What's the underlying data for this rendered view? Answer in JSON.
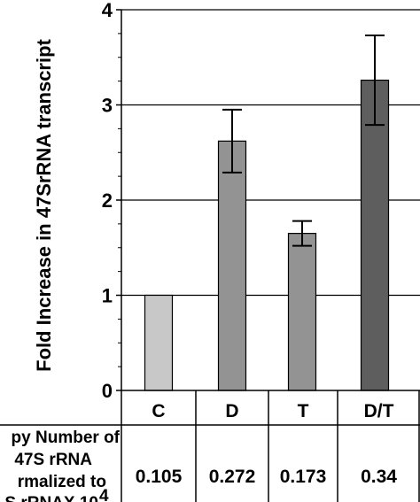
{
  "chart_data": {
    "type": "bar",
    "ylabel": "Fold  Increase in 47SrRNA transcript",
    "ylim": [
      0,
      4
    ],
    "yticks": [
      0,
      1,
      2,
      3,
      4
    ],
    "grid": "horizontal",
    "categories": [
      "C",
      "D",
      "T",
      "D/T"
    ],
    "values": [
      1.0,
      2.62,
      1.65,
      3.26
    ],
    "error": [
      0,
      0.33,
      0.13,
      0.47
    ],
    "colors": [
      "#c8c8c8",
      "#939393",
      "#939393",
      "#5e5e5e"
    ],
    "table": {
      "row_label": [
        "py Number of",
        "47S rRNA",
        "rmalized to",
        "S rRNAX 10"
      ],
      "row_label_superscript": "4",
      "values": [
        "0.105",
        "0.272",
        "0.173",
        "0.34"
      ]
    }
  }
}
